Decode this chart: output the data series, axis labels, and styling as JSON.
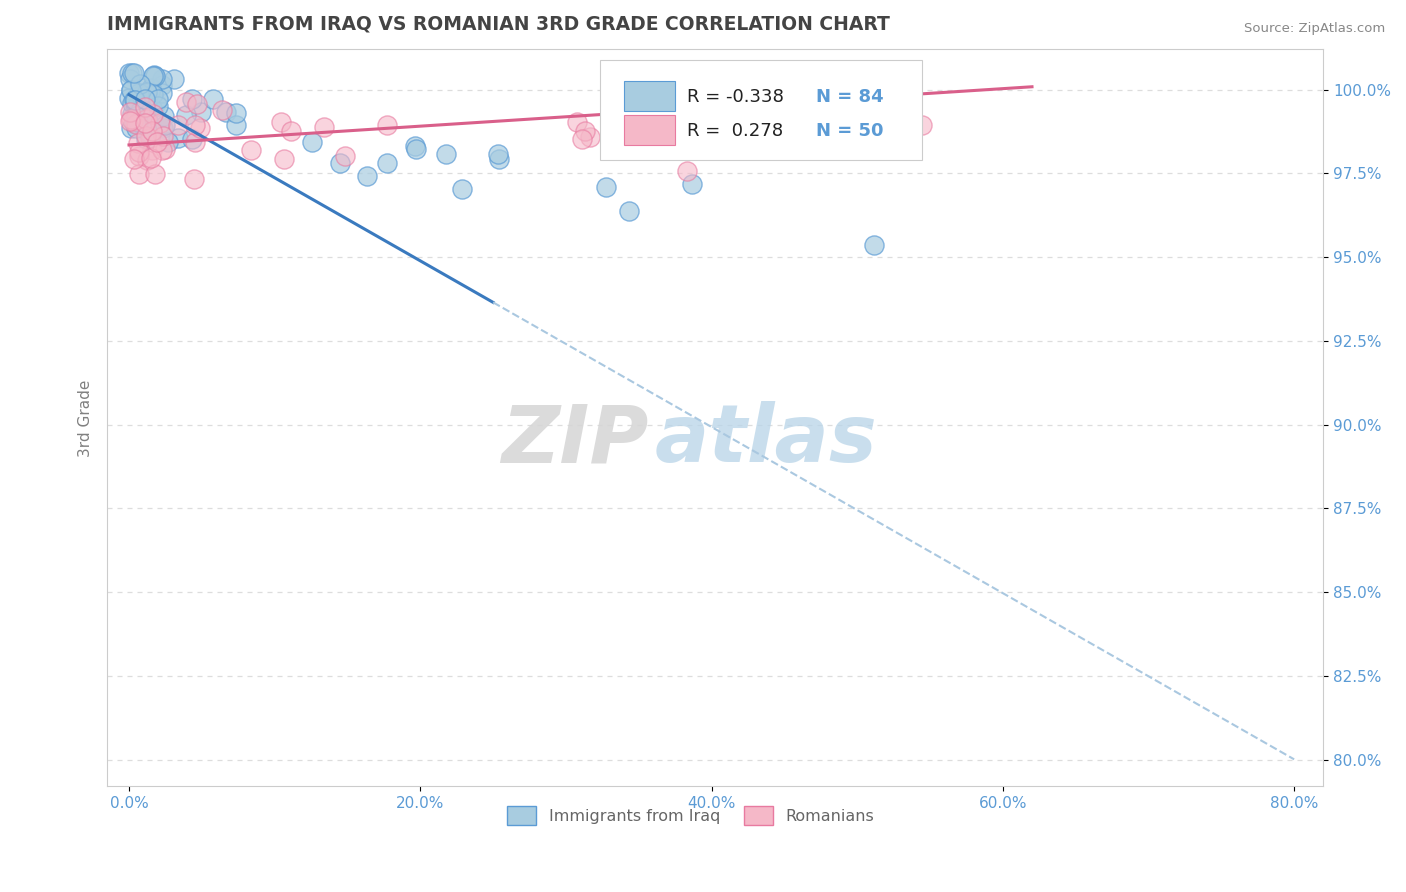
{
  "title": "IMMIGRANTS FROM IRAQ VS ROMANIAN 3RD GRADE CORRELATION CHART",
  "source": "Source: ZipAtlas.com",
  "xlabel_vals": [
    0.0,
    20.0,
    40.0,
    60.0,
    80.0
  ],
  "ylabel_vals": [
    80.0,
    82.5,
    85.0,
    87.5,
    90.0,
    92.5,
    95.0,
    97.5,
    100.0
  ],
  "xmin": -1.5,
  "xmax": 82.0,
  "ymin": 79.2,
  "ymax": 101.2,
  "blue_color": "#a8cce0",
  "blue_edge": "#5b9bd5",
  "pink_color": "#f5b8c8",
  "pink_edge": "#e87aa0",
  "blue_line_color": "#3a7abf",
  "pink_line_color": "#d95f8a",
  "dashed_line_color": "#aac8e0",
  "legend_blue_label": "Immigrants from Iraq",
  "legend_pink_label": "Romanians",
  "R_blue": -0.338,
  "N_blue": 84,
  "R_pink": 0.278,
  "N_pink": 50,
  "ylabel": "3rd Grade",
  "watermark_zip": "ZIP",
  "watermark_atlas": "atlas",
  "title_color": "#444444",
  "axis_label_color": "#5b9bd5",
  "tick_color": "#808080",
  "grid_color": "#dddddd"
}
